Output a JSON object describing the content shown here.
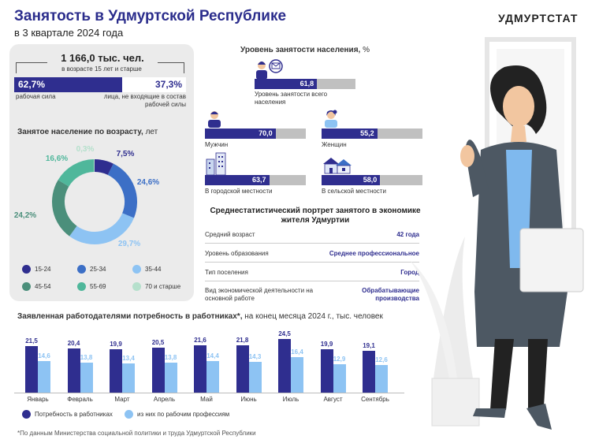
{
  "header": {
    "title": "Занятость в Удмуртской Республике",
    "subtitle": "в 3 квартале 2024 года",
    "brand": "УДМУРТСТАТ"
  },
  "labor": {
    "total": "1 166,0 тыс. чел.",
    "total_note": "в возрасте 15 лет и старше",
    "workforce_pct": "62,7%",
    "workforce_label": "рабочая сила",
    "outside_pct": "37,3%",
    "outside_label": "лица, не входящие в состав рабочей силы",
    "workforce_value": 62.7,
    "colors": {
      "dark": "#2f2e8f"
    }
  },
  "age": {
    "title": "Занятое население по возрасту,",
    "unit": "лет"
  },
  "employment": {
    "title": "Уровень занятости населения,",
    "unit": "%",
    "items": [
      {
        "label": "Уровень занятости всего населения",
        "value": 61.8,
        "text": "61,8",
        "icon": "people-chat-icon"
      },
      {
        "label": "Мужчин",
        "value": 70.0,
        "text": "70,0",
        "icon": "man-icon"
      },
      {
        "label": "Женщин",
        "value": 55.2,
        "text": "55,2",
        "icon": "woman-icon"
      },
      {
        "label": "В городской местности",
        "value": 63.7,
        "text": "63,7",
        "icon": "city-icon"
      },
      {
        "label": "В сельской местности",
        "value": 58.0,
        "text": "58,0",
        "icon": "village-icon"
      }
    ]
  },
  "portrait": {
    "title": "Среднестатистический портрет занятого в экономике жителя Удмуртии",
    "rows": [
      {
        "k": "Средний возраст",
        "v": "42 года"
      },
      {
        "k": "Уровень образования",
        "v": "Среднее профессиональное"
      },
      {
        "k": "Тип поселения",
        "v": "Город"
      },
      {
        "k": "Вид экономической деятельности на основной работе",
        "v": "Обрабатывающие производства"
      }
    ]
  },
  "need": {
    "title": "Заявленная работодателями потребность в работниках*,",
    "unit": "на конец месяца 2024 г., тыс. человек"
  },
  "footnote": "*По данным Министерства социальной политики и труда Удмуртской Республики",
  "chart_data": [
    {
      "type": "pie",
      "title": "Занятое население по возрасту, лет",
      "categories": [
        "15-24",
        "25-34",
        "35-44",
        "45-54",
        "55-69",
        "70 и старше"
      ],
      "values": [
        7.5,
        24.6,
        29.7,
        24.2,
        16.6,
        0.3
      ],
      "labels": [
        "7,5%",
        "24,6%",
        "29,7%",
        "24,2%",
        "16,6%",
        "0,3%"
      ],
      "colors": [
        "#2f2e8f",
        "#3c6fc6",
        "#8dc3f3",
        "#4b8f7b",
        "#4fb79b",
        "#b5e0cc"
      ]
    },
    {
      "type": "bar",
      "title": "Заявленная работодателями потребность в работниках*, на конец месяца 2024 г., тыс. человек",
      "categories": [
        "Январь",
        "Февраль",
        "Март",
        "Апрель",
        "Май",
        "Июнь",
        "Июль",
        "Август",
        "Сентябрь"
      ],
      "series": [
        {
          "name": "Потребность в работниках",
          "values": [
            21.5,
            20.4,
            19.9,
            20.5,
            21.6,
            21.8,
            24.5,
            19.9,
            19.1
          ],
          "labels": [
            "21,5",
            "20,4",
            "19,9",
            "20,5",
            "21,6",
            "21,8",
            "24,5",
            "19,9",
            "19,1"
          ],
          "color": "#2f2e8f"
        },
        {
          "name": "из них по рабочим профессиям",
          "values": [
            14.6,
            13.8,
            13.4,
            13.8,
            14.4,
            14.3,
            16.4,
            12.9,
            12.6
          ],
          "labels": [
            "14,6",
            "13,8",
            "13,4",
            "13,8",
            "14,4",
            "14,3",
            "16,4",
            "12,9",
            "12,6"
          ],
          "color": "#8dc3f3"
        }
      ],
      "ylim": [
        0,
        26
      ]
    }
  ]
}
